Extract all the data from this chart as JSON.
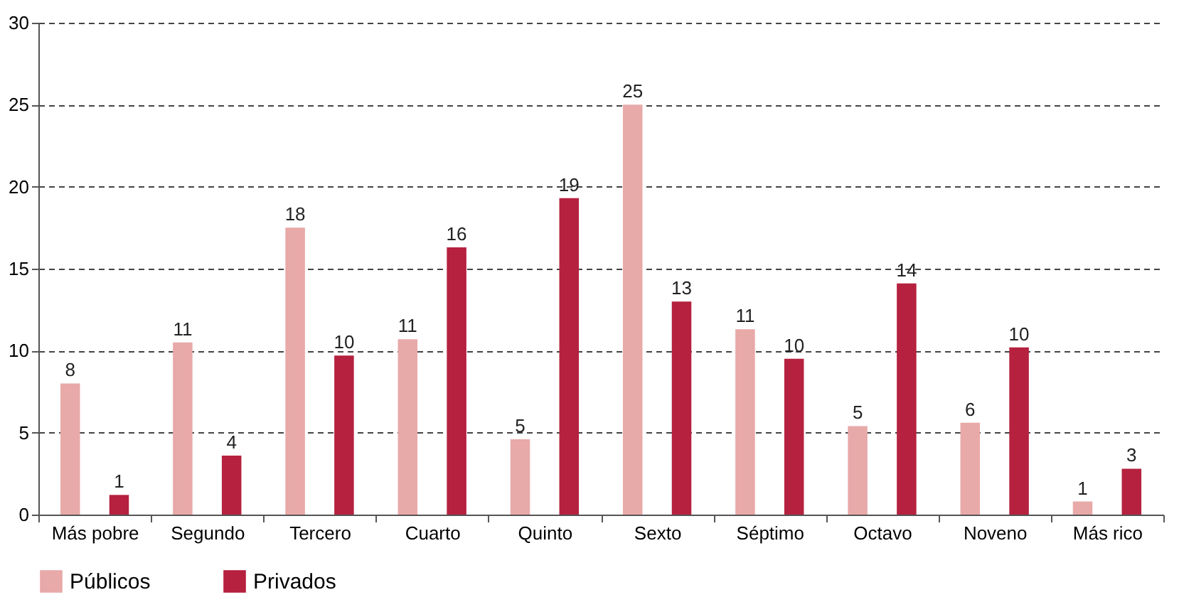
{
  "chart_data": {
    "type": "bar",
    "categories": [
      "Más pobre",
      "Segundo",
      "Tercero",
      "Cuarto",
      "Quinto",
      "Sexto",
      "Séptimo",
      "Octavo",
      "Noveno",
      "Más rico"
    ],
    "series": [
      {
        "name": "Públicos",
        "color": "#e8a9a9",
        "values": [
          8.0,
          10.5,
          17.5,
          10.7,
          4.6,
          25.0,
          11.3,
          5.4,
          5.6,
          0.8
        ],
        "value_labels": [
          "8",
          "11",
          "18",
          "11",
          "5",
          "25",
          "11",
          "5",
          "6",
          "1"
        ]
      },
      {
        "name": "Privados",
        "color": "#b5213f",
        "values": [
          1.2,
          3.6,
          9.7,
          16.3,
          19.3,
          13.0,
          9.5,
          14.1,
          10.2,
          2.8
        ],
        "value_labels": [
          "1",
          "4",
          "10",
          "16",
          "19",
          "13",
          "10",
          "14",
          "10",
          "3"
        ]
      }
    ],
    "ylim": [
      0,
      30
    ],
    "yticks": [
      0,
      5,
      10,
      15,
      20,
      25,
      30
    ],
    "grid": "y",
    "legend": "bottom"
  }
}
